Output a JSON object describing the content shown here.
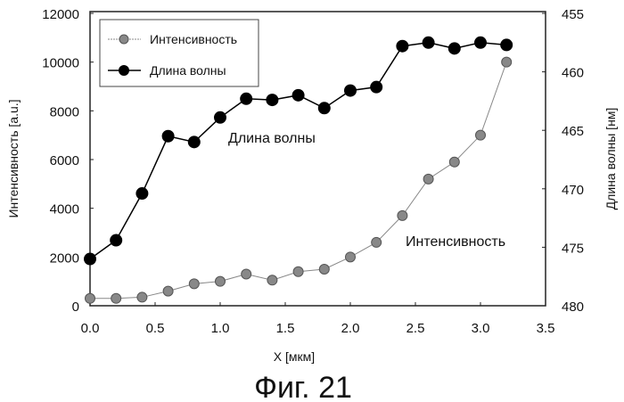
{
  "chart_data": {
    "type": "line",
    "caption": "Фиг. 21",
    "xlabel": "X [мкм]",
    "ylabel": "Интенсивность [a.u.]",
    "y2label": "Длина волны [нм]",
    "xlim": [
      0,
      3.5
    ],
    "ylim": [
      0,
      12000
    ],
    "y2lim": [
      480,
      455
    ],
    "xticks": [
      "0.0",
      "0.5",
      "1.0",
      "1.5",
      "2.0",
      "2.5",
      "3.0",
      "3.5"
    ],
    "yticks": [
      "0",
      "2000",
      "4000",
      "6000",
      "8000",
      "10000",
      "12000"
    ],
    "y2ticks": [
      "480",
      "475",
      "470",
      "465",
      "460",
      "455"
    ],
    "grid": false,
    "legend": {
      "position": "top-left",
      "entries": [
        "Интенсивность",
        "Длина волны"
      ]
    },
    "annotations": [
      "Длина волны",
      "Интенсивность"
    ],
    "x": [
      0.0,
      0.2,
      0.4,
      0.6,
      0.8,
      1.0,
      1.2,
      1.4,
      1.6,
      1.8,
      2.0,
      2.2,
      2.4,
      2.6,
      2.8,
      3.0,
      3.2
    ],
    "series": [
      {
        "name": "Интенсивность",
        "axis": "left",
        "color": "#888888",
        "values": [
          300,
          300,
          350,
          600,
          900,
          1000,
          1300,
          1050,
          1400,
          1500,
          2000,
          2600,
          3700,
          5200,
          5900,
          7000,
          10000
        ]
      },
      {
        "name": "Длина волны",
        "axis": "right",
        "color": "#000000",
        "values": [
          476.0,
          474.4,
          470.4,
          465.5,
          466.0,
          463.9,
          462.3,
          462.4,
          462.0,
          463.1,
          461.6,
          461.3,
          457.8,
          457.5,
          458.0,
          457.5,
          457.7
        ]
      }
    ]
  }
}
